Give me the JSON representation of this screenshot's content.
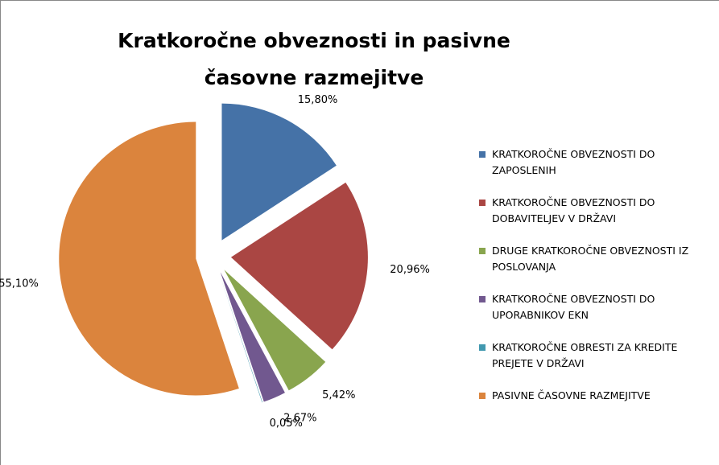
{
  "chart_data": {
    "type": "pie",
    "title": "Kratkoročne obveznosti in pasivne časovne razmejitve",
    "categories": [
      "KRATKOROČNE OBVEZNOSTI DO ZAPOSLENIH",
      "KRATKOROČNE OBVEZNOSTI DO DOBAVITELJEV V DRŽAVI",
      "DRUGE KRATKOROČNE OBVEZNOSTI IZ POSLOVANJA",
      "KRATKOROČNE OBVEZNOSTI DO UPORABNIKOV EKN",
      "KRATKOROČNE OBRESTI ZA KREDITE PREJETE V DRŽAVI",
      "PASIVNE ČASOVNE RAZMEJITVE"
    ],
    "values": [
      15.8,
      20.96,
      5.42,
      2.67,
      0.05,
      55.1
    ],
    "value_labels": [
      "15,80%",
      "20,96%",
      "5,42%",
      "2,67%",
      "0,05%",
      "55,10%"
    ],
    "colors": [
      "#4572a7",
      "#aa4643",
      "#89a54e",
      "#71588f",
      "#4198af",
      "#db843d"
    ],
    "legend": "right"
  }
}
